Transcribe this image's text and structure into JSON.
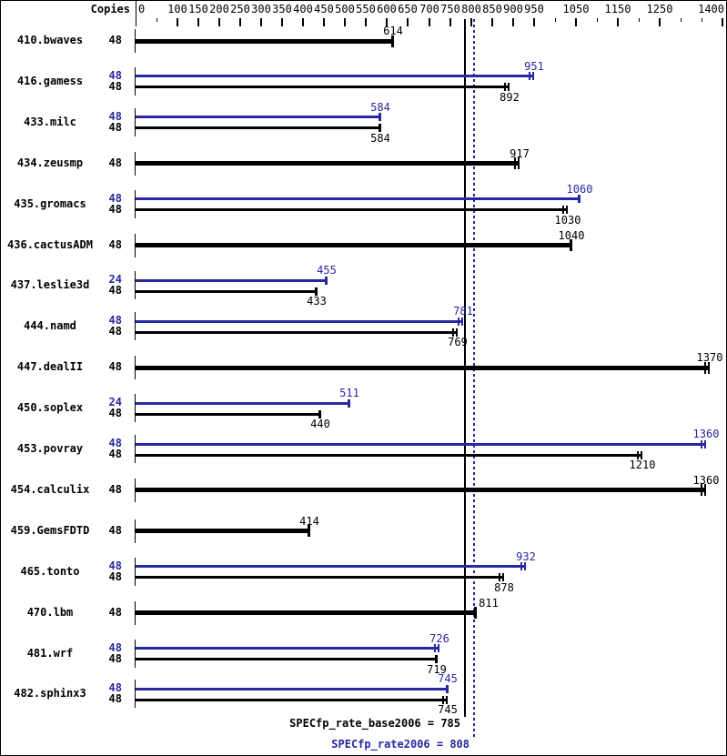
{
  "colors": {
    "peak_blue": "#2828a0",
    "base_black": "#000000",
    "background": "#ffffff"
  },
  "header": {
    "copies_label": "Copies"
  },
  "footer": {
    "base_summary": "SPECfp_rate_base2006 = 785",
    "peak_summary": "SPECfp_rate2006 = 808"
  },
  "chart_data": {
    "type": "bar",
    "orientation": "horizontal",
    "title": "",
    "value_axis": {
      "position": "top",
      "min": 0,
      "max": 1400,
      "tick_step": 50,
      "labeled_ticks": [
        0,
        100,
        150,
        200,
        250,
        300,
        350,
        400,
        450,
        500,
        550,
        600,
        650,
        700,
        750,
        800,
        850,
        900,
        950,
        1050,
        1150,
        1250,
        1400
      ]
    },
    "reference_lines": [
      {
        "name": "SPECfp_rate_base2006",
        "value": 785,
        "color": "#000000",
        "style": "solid"
      },
      {
        "name": "SPECfp_rate2006",
        "value": 808,
        "color": "#2828a0",
        "style": "dotted"
      }
    ],
    "benchmarks": [
      {
        "name": "410.bwaves",
        "bars": [
          {
            "copies": 48,
            "value": 614,
            "series": "base",
            "bold": true,
            "end_marker": "single"
          }
        ]
      },
      {
        "name": "416.gamess",
        "bars": [
          {
            "copies": 48,
            "value": 951,
            "series": "peak",
            "end_marker": "double"
          },
          {
            "copies": 48,
            "value": 892,
            "series": "base",
            "end_marker": "double"
          }
        ]
      },
      {
        "name": "433.milc",
        "bars": [
          {
            "copies": 48,
            "value": 584,
            "series": "peak",
            "end_marker": "single"
          },
          {
            "copies": 48,
            "value": 584,
            "series": "base",
            "end_marker": "single"
          }
        ]
      },
      {
        "name": "434.zeusmp",
        "bars": [
          {
            "copies": 48,
            "value": 917,
            "series": "base",
            "bold": true,
            "end_marker": "double"
          }
        ]
      },
      {
        "name": "435.gromacs",
        "bars": [
          {
            "copies": 48,
            "value": 1060,
            "series": "peak",
            "end_marker": "single"
          },
          {
            "copies": 48,
            "value": 1030,
            "series": "base",
            "end_marker": "double"
          }
        ]
      },
      {
        "name": "436.cactusADM",
        "bars": [
          {
            "copies": 48,
            "value": 1040,
            "series": "base",
            "bold": true,
            "end_marker": "single"
          }
        ]
      },
      {
        "name": "437.leslie3d",
        "bars": [
          {
            "copies": 24,
            "value": 455,
            "series": "peak",
            "end_marker": "single"
          },
          {
            "copies": 48,
            "value": 433,
            "series": "base",
            "end_marker": "single"
          }
        ]
      },
      {
        "name": "444.namd",
        "bars": [
          {
            "copies": 48,
            "value": 781,
            "series": "peak",
            "end_marker": "double"
          },
          {
            "copies": 48,
            "value": 769,
            "series": "base",
            "end_marker": "double"
          }
        ]
      },
      {
        "name": "447.dealII",
        "bars": [
          {
            "copies": 48,
            "value": 1370,
            "series": "base",
            "bold": true,
            "end_marker": "double"
          }
        ]
      },
      {
        "name": "450.soplex",
        "bars": [
          {
            "copies": 24,
            "value": 511,
            "series": "peak",
            "end_marker": "single"
          },
          {
            "copies": 48,
            "value": 440,
            "series": "base",
            "end_marker": "single"
          }
        ]
      },
      {
        "name": "453.povray",
        "bars": [
          {
            "copies": 48,
            "value": 1360,
            "series": "peak",
            "end_marker": "double"
          },
          {
            "copies": 48,
            "value": 1210,
            "series": "base",
            "end_marker": "double"
          }
        ]
      },
      {
        "name": "454.calculix",
        "bars": [
          {
            "copies": 48,
            "value": 1360,
            "series": "base",
            "bold": true,
            "end_marker": "double"
          }
        ]
      },
      {
        "name": "459.GemsFDTD",
        "bars": [
          {
            "copies": 48,
            "value": 414,
            "series": "base",
            "bold": true,
            "end_marker": "single"
          }
        ]
      },
      {
        "name": "465.tonto",
        "bars": [
          {
            "copies": 48,
            "value": 932,
            "series": "peak",
            "end_marker": "double"
          },
          {
            "copies": 48,
            "value": 878,
            "series": "base",
            "end_marker": "double"
          }
        ]
      },
      {
        "name": "470.lbm",
        "bars": [
          {
            "copies": 48,
            "value": 811,
            "series": "base",
            "bold": true,
            "end_marker": "single",
            "label_dx": 14
          }
        ]
      },
      {
        "name": "481.wrf",
        "bars": [
          {
            "copies": 48,
            "value": 726,
            "series": "peak",
            "end_marker": "double"
          },
          {
            "copies": 48,
            "value": 719,
            "series": "base",
            "end_marker": "single"
          }
        ]
      },
      {
        "name": "482.sphinx3",
        "bars": [
          {
            "copies": 48,
            "value": 745,
            "series": "peak",
            "end_marker": "single"
          },
          {
            "copies": 48,
            "value": 745,
            "series": "base",
            "end_marker": "double"
          }
        ]
      }
    ]
  }
}
